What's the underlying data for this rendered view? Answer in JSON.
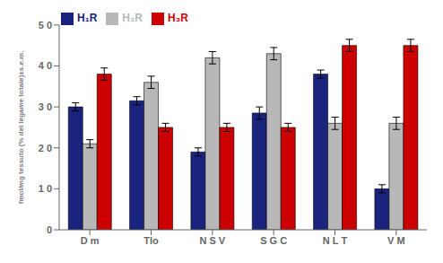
{
  "chart_data": {
    "type": "bar",
    "categories": [
      "D m",
      "Tlo",
      "N S V",
      "S G C",
      "N L T",
      "V M"
    ],
    "series": [
      {
        "name": "H₁R",
        "color": "#1a237e",
        "values": [
          30.0,
          31.5,
          19.0,
          28.5,
          38.0,
          10.0
        ],
        "errors": [
          1.0,
          1.0,
          1.0,
          1.5,
          1.0,
          1.0
        ]
      },
      {
        "name": "H₂R",
        "color": "#b8b8b8",
        "values": [
          21.0,
          36.0,
          42.0,
          43.0,
          26.0,
          26.0
        ],
        "errors": [
          1.0,
          1.5,
          1.5,
          1.5,
          1.5,
          1.5
        ]
      },
      {
        "name": "H₃R",
        "color": "#cc0000",
        "values": [
          38.0,
          25.0,
          25.0,
          25.0,
          45.0,
          45.0
        ],
        "errors": [
          1.5,
          1.0,
          1.0,
          1.0,
          1.5,
          1.5
        ]
      }
    ],
    "ylabel": "fmol/mg tessuto (% del legame totale)±s.e.m.",
    "ylim": [
      0,
      50
    ],
    "yticks": [
      0,
      {
        "value": 10,
        "label": "1 0"
      },
      {
        "value": 20,
        "label": "2 0"
      },
      {
        "value": 30,
        "label": "3 0"
      },
      {
        "value": 40,
        "label": "4 0"
      },
      {
        "value": 50,
        "label": "5 0"
      }
    ],
    "legend": "top-left",
    "grid": false
  }
}
